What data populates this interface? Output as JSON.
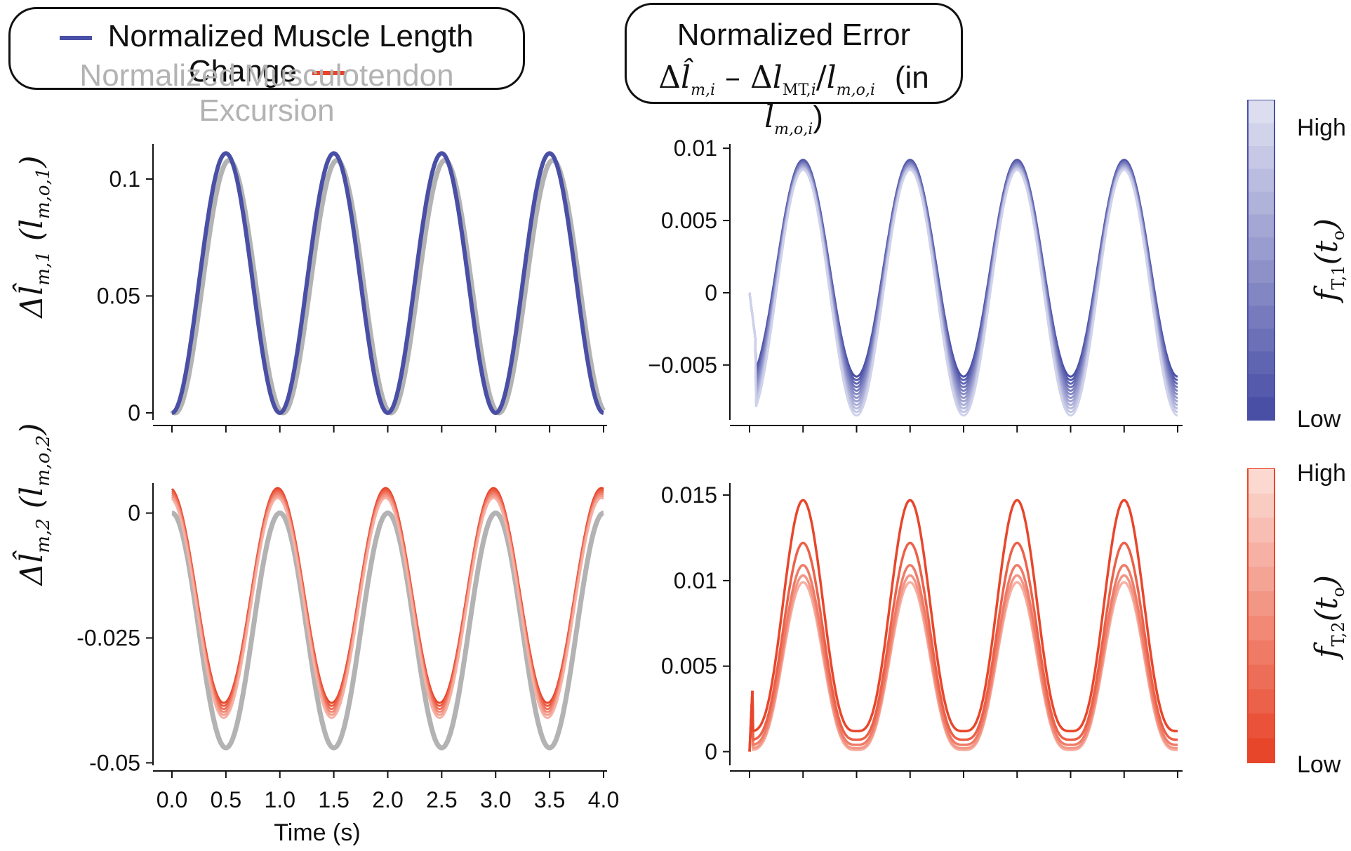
{
  "legend": {
    "item1": "Normalized Muscle Length Change",
    "item2": "Normalized Musculotendon Excursion",
    "color1": "#4a4fa6",
    "color2": "#b3b3b3",
    "color_red": "#e8462b"
  },
  "error_box": {
    "title": "Normalized Error",
    "formula": "Δl̂m,i – ΔlMT,i/lm,o,i  (in lm,o,i)"
  },
  "xaxis": {
    "label": "Time (s)"
  },
  "colorbars": [
    {
      "high": "High",
      "low": "Low",
      "label": "fT,1(to)",
      "color": "#4a4fa6"
    },
    {
      "high": "High",
      "low": "Low",
      "label": "fT,2(to)",
      "color": "#e8462b"
    }
  ],
  "chart_data": [
    {
      "type": "line",
      "panel": "top-left",
      "ylabel": "Δl̂m,1 (lm,o,1)",
      "ylim": [
        -0.003,
        0.115
      ],
      "yticks": [
        0,
        0.05,
        0.1
      ],
      "ytick_labels": [
        "0",
        "0.05",
        "0.1"
      ],
      "xlim": [
        0,
        4
      ],
      "series": [
        {
          "name": "Normalized Muscle Length Change",
          "color": "#4a4fa6",
          "amplitude": 0.0555,
          "offset": 0.0555,
          "phase": 0.0
        },
        {
          "name": "Normalized Musculotendon Excursion",
          "color": "#b3b3b3",
          "amplitude": 0.054,
          "offset": 0.054,
          "phase": 0.03
        }
      ]
    },
    {
      "type": "line",
      "panel": "top-right",
      "ylim": [
        -0.0088,
        0.0103
      ],
      "yticks": [
        -0.005,
        0,
        0.005,
        0.01
      ],
      "ytick_labels": [
        "−0.005",
        "0",
        "0.005",
        "0.01"
      ],
      "xlim": [
        0,
        4
      ],
      "peak_values": [
        0.0092,
        0.0085
      ],
      "trough_values": [
        -0.0058,
        -0.0085
      ]
    },
    {
      "type": "line",
      "panel": "bottom-left",
      "ylabel": "Δl̂m,2 (lm,o,2)",
      "ylim": [
        -0.0505,
        0.006
      ],
      "yticks": [
        -0.05,
        -0.025,
        0
      ],
      "ytick_labels": [
        "-0.05",
        "-0.025",
        "0"
      ],
      "xticks": [
        0,
        0.5,
        1.0,
        1.5,
        2.0,
        2.5,
        3.0,
        3.5,
        4.0
      ],
      "xtick_labels": [
        "0.0",
        "0.5",
        "1.0",
        "1.5",
        "2.0",
        "2.5",
        "3.0",
        "3.5",
        "4.0"
      ],
      "xlim": [
        0,
        4
      ],
      "excursion_range": [
        -0.047,
        0
      ],
      "muscle_range_high_ft": [
        -0.038,
        0.005
      ],
      "muscle_range_low_ft": [
        -0.041,
        0.003
      ]
    },
    {
      "type": "line",
      "panel": "bottom-right",
      "ylim": [
        -0.0008,
        0.0157
      ],
      "yticks": [
        0,
        0.005,
        0.01,
        0.015
      ],
      "ytick_labels": [
        "0",
        "0.005",
        "0.01",
        "0.015"
      ],
      "xlim": [
        0,
        4
      ],
      "peak_values": [
        0.0147,
        0.0122,
        0.0109,
        0.0103,
        0.0099
      ],
      "trough_values": [
        0.0012,
        0.0007,
        0.0004,
        0.0002,
        0.0001
      ]
    }
  ]
}
